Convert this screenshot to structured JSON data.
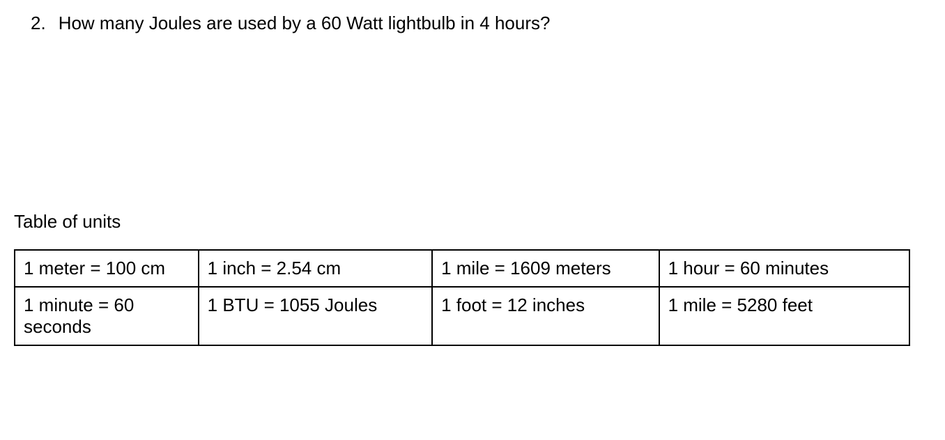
{
  "question": {
    "number": "2.",
    "text": "How many Joules are used by a 60 Watt lightbulb in 4 hours?"
  },
  "table": {
    "title": "Table of units",
    "rows": [
      [
        "1 meter = 100 cm",
        "1 inch = 2.54 cm",
        "1 mile = 1609 meters",
        "1 hour = 60 minutes"
      ],
      [
        "1 minute = 60 seconds",
        "1 BTU = 1055 Joules",
        "1 foot = 12 inches",
        "1 mile = 5280 feet"
      ]
    ]
  },
  "style": {
    "background_color": "#ffffff",
    "text_color": "#000000",
    "border_color": "#000000",
    "font_family": "Arial, Helvetica, sans-serif",
    "question_fontsize": 26,
    "table_title_fontsize": 26,
    "cell_fontsize": 26,
    "border_width": 2
  }
}
